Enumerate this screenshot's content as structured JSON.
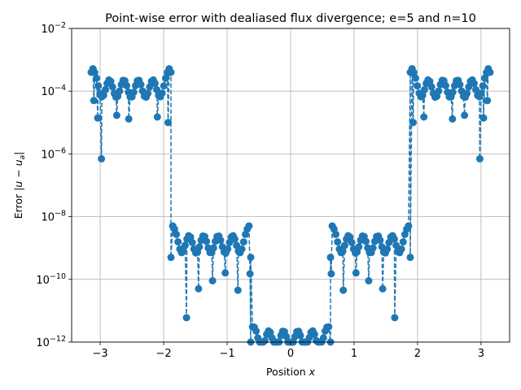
{
  "chart_data": {
    "type": "line",
    "title": "Point-wise error with dealiased flux divergence; e=5 and n=10",
    "xlabel": "Position x",
    "ylabel": "Error |u − u_a|",
    "xlim": [
      -3.45,
      3.45
    ],
    "ylim": [
      1e-12,
      0.01
    ],
    "yscale": "log",
    "grid": true,
    "x_ticks": [
      -3,
      -2,
      -1,
      0,
      1,
      2,
      3
    ],
    "x_tick_labels": [
      "−3",
      "−2",
      "−1",
      "0",
      "1",
      "2",
      "3"
    ],
    "y_ticks": [
      1e-12,
      1e-10,
      1e-08,
      1e-06,
      0.0001,
      0.01
    ],
    "y_tick_exponents": [
      "−12",
      "−10",
      "−8",
      "−6",
      "−4",
      "−2"
    ],
    "y_tick_base": "10",
    "series": [
      {
        "style": "dashed line with circle markers",
        "color": "#1f77b4",
        "element_levels": [
          {
            "x_range": [
              -3.1416,
              -1.885
            ],
            "peak": 0.0008,
            "level": 0.00012,
            "edge": 0.0004,
            "dips": [
              -3.1,
              -3.04,
              -2.98,
              -2.74,
              -2.55,
              -2.1,
              -1.93
            ],
            "dip_values": [
              5e-05,
              1.4e-05,
              7e-07,
              1.7e-05,
              1.3e-05,
              1.5e-05,
              1e-05
            ]
          },
          {
            "x_range": [
              -1.885,
              -0.628
            ],
            "peak": 7e-09,
            "level": 1.3e-09,
            "edge": 5e-10,
            "dips": [
              -1.64,
              -1.45,
              -1.23,
              -1.03,
              -0.83,
              -0.64
            ],
            "dip_values": [
              6e-12,
              5e-11,
              9e-11,
              1.6e-10,
              4.5e-11,
              1.5e-10
            ]
          },
          {
            "x_range": [
              -0.628,
              0.628
            ],
            "peak": 3e-12,
            "level": 1.2e-12,
            "edge": 1e-12,
            "dips": [],
            "dip_values": []
          },
          {
            "x_range": [
              0.628,
              1.885
            ],
            "peak": 7e-09,
            "level": 1.3e-09,
            "edge": 5e-10,
            "dips": [
              0.64,
              0.83,
              1.03,
              1.23,
              1.45,
              1.64
            ],
            "dip_values": [
              1.5e-10,
              4.5e-11,
              1.6e-10,
              9e-11,
              5e-11,
              6e-12
            ]
          },
          {
            "x_range": [
              1.885,
              3.1416
            ],
            "peak": 0.0008,
            "level": 0.00012,
            "edge": 0.0004,
            "dips": [
              1.93,
              2.1,
              2.55,
              2.74,
              2.98,
              3.04,
              3.1
            ],
            "dip_values": [
              1e-05,
              1.5e-05,
              1.3e-05,
              1.7e-05,
              7e-07,
              1.4e-05,
              5e-05
            ]
          }
        ]
      }
    ]
  }
}
